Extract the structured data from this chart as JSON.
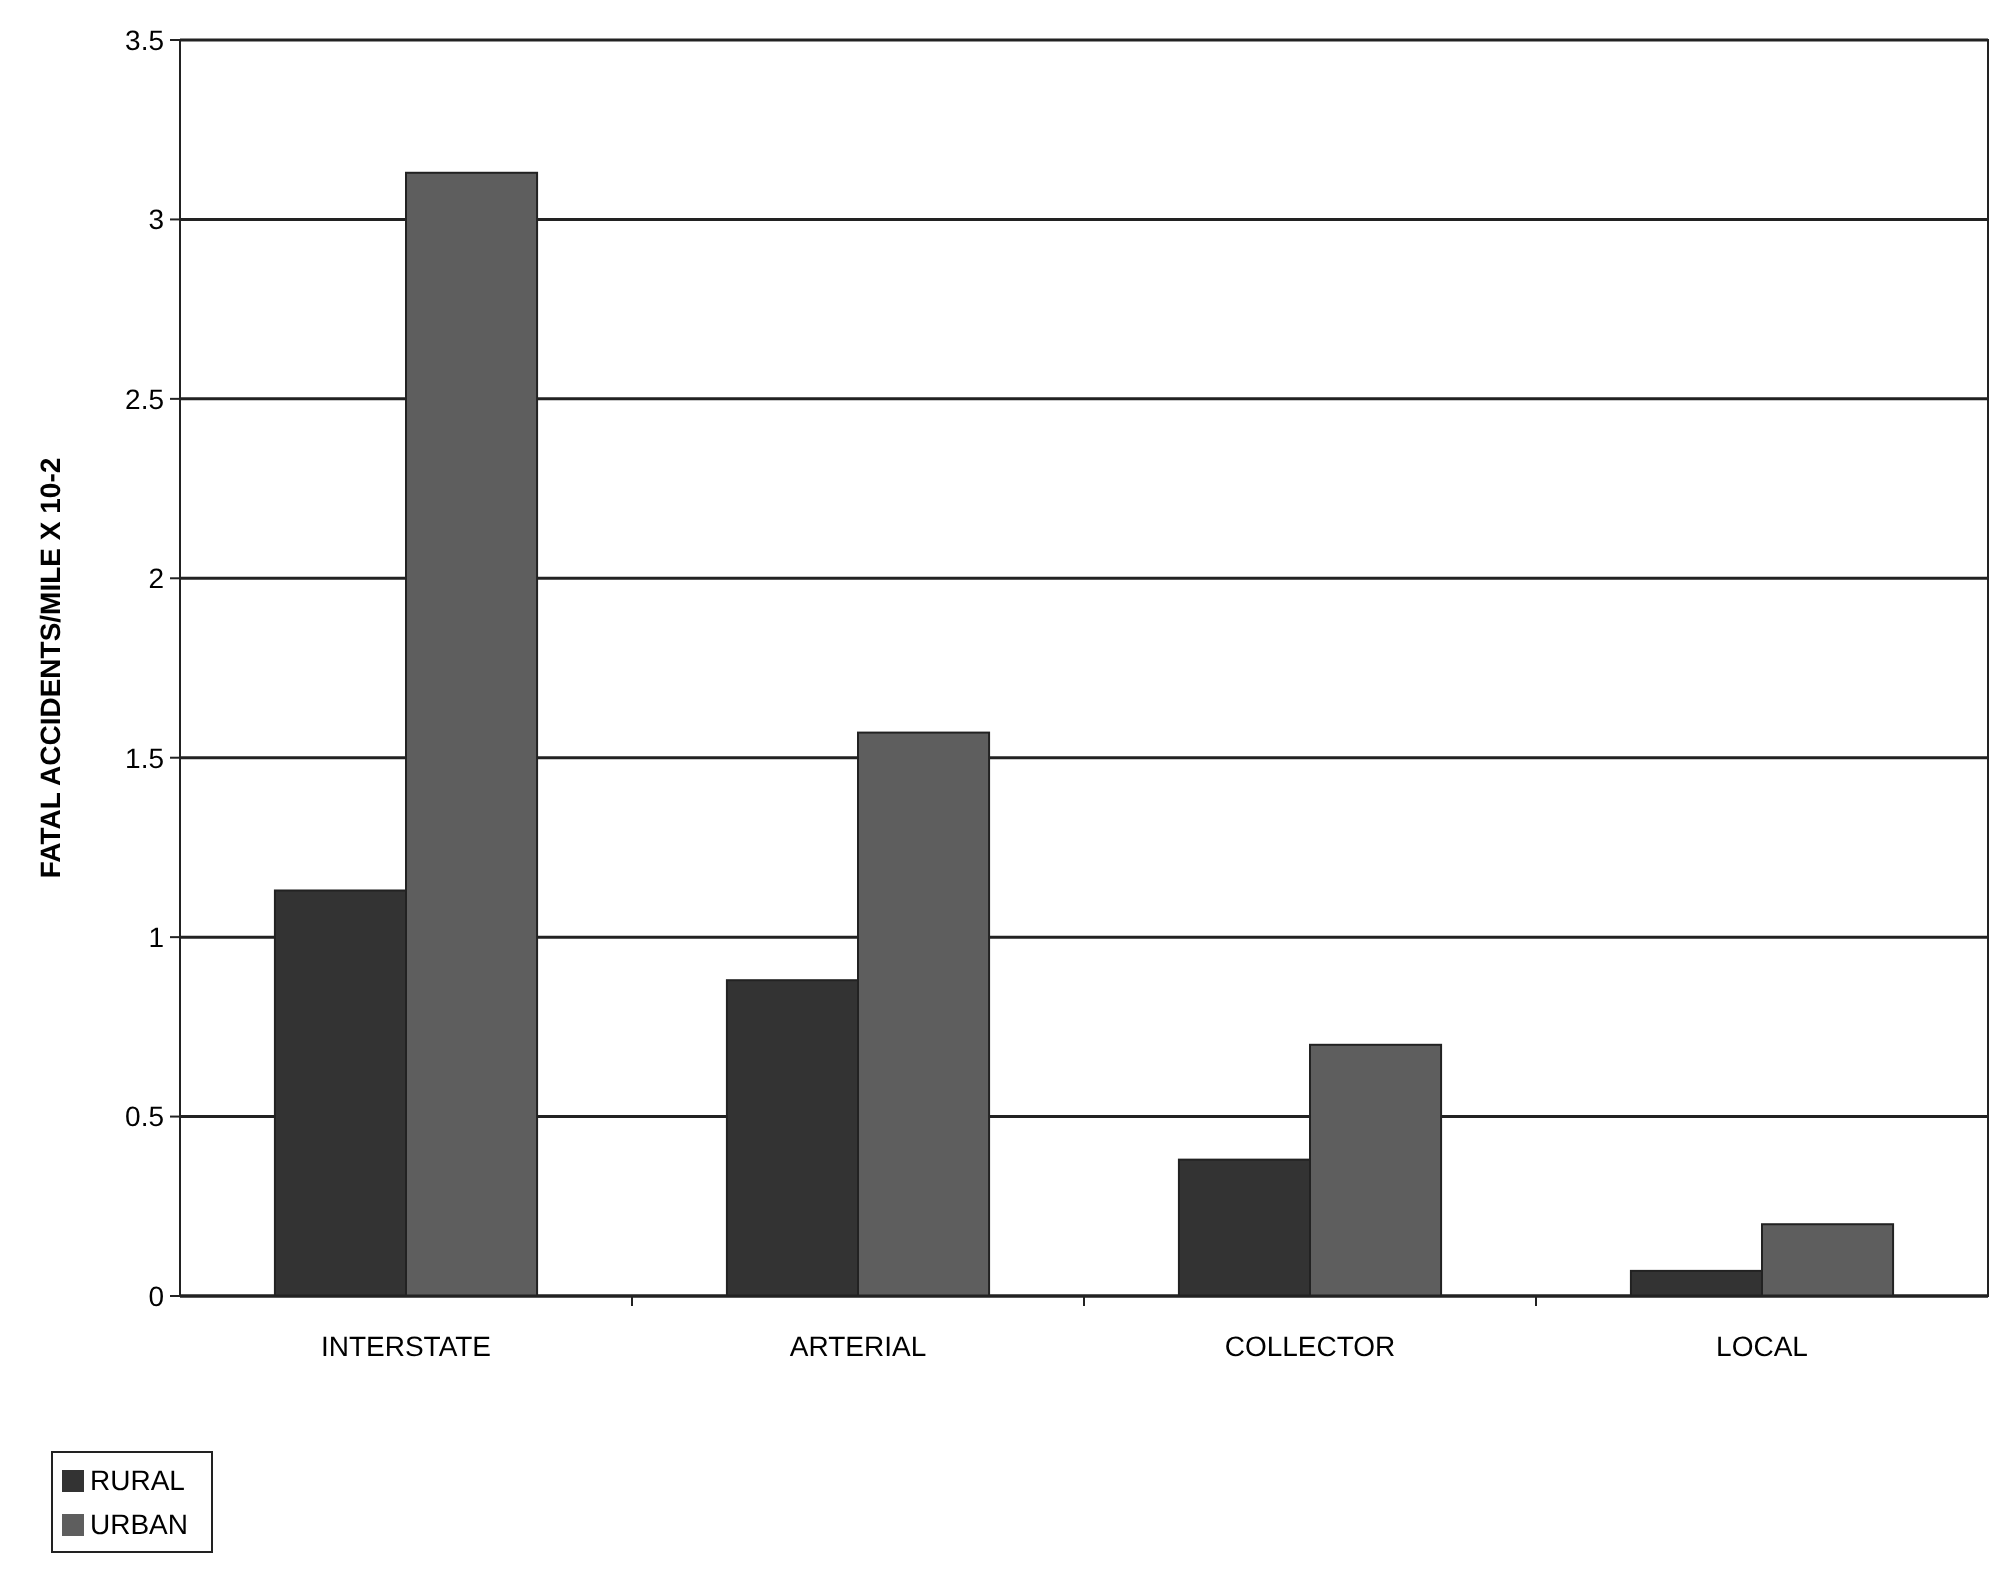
{
  "chart_data": {
    "type": "bar",
    "ylabel": "FATAL ACCIDENTS/MILE X 10-2",
    "categories": [
      "INTERSTATE",
      "ARTERIAL",
      "COLLECTOR",
      "LOCAL"
    ],
    "series": [
      {
        "name": "RURAL",
        "color": "#333333",
        "values": [
          1.13,
          0.88,
          0.38,
          0.07
        ]
      },
      {
        "name": "URBAN",
        "color": "#5e5e5e",
        "values": [
          3.13,
          1.57,
          0.7,
          0.2
        ]
      }
    ],
    "ylim": [
      0,
      3.5
    ],
    "yticks": [
      0,
      {
        "value": 0.5,
        "label": "0.5"
      },
      1,
      {
        "value": 1.5,
        "label": "1.5"
      },
      2,
      {
        "value": 2.5,
        "label": "2.5"
      },
      3,
      {
        "value": 3.5,
        "label": "3.5"
      }
    ],
    "grid": "y",
    "legend": "bottom left"
  }
}
